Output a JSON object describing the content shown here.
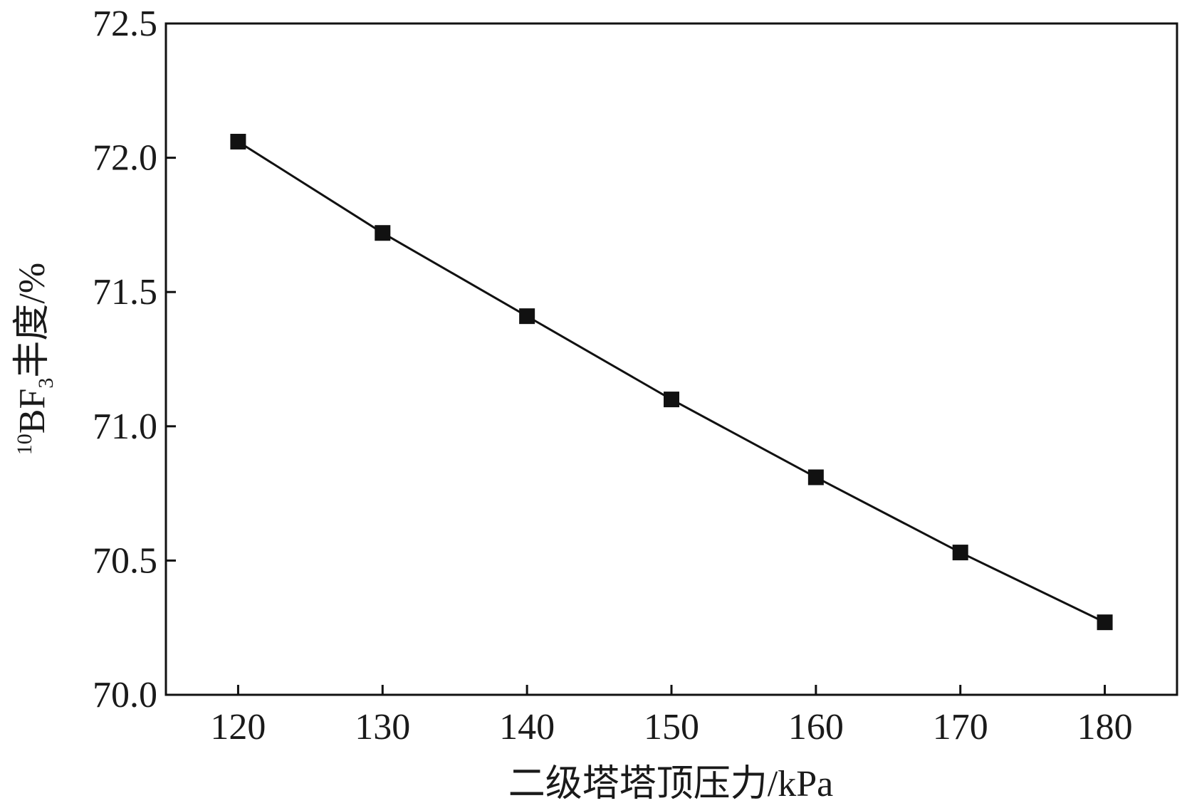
{
  "chart_data": {
    "type": "line",
    "title": "",
    "xlabel": "二级塔塔顶压力/kPa",
    "ylabel": {
      "sup": "10",
      "main": "BF",
      "sub": "3",
      "rest": "丰度/%"
    },
    "xlim": [
      115,
      185
    ],
    "ylim": [
      70.0,
      72.5
    ],
    "xticks": [
      "120",
      "130",
      "140",
      "150",
      "160",
      "170",
      "180"
    ],
    "yticks": [
      "70.0",
      "70.5",
      "71.0",
      "71.5",
      "72.0",
      "72.5"
    ],
    "grid": false,
    "legend": "none",
    "series": [
      {
        "marker": "square",
        "color": "#111111",
        "x": [
          120,
          130,
          140,
          150,
          160,
          170,
          180
        ],
        "y": [
          72.06,
          71.72,
          71.41,
          71.1,
          70.81,
          70.53,
          70.27
        ]
      }
    ]
  }
}
